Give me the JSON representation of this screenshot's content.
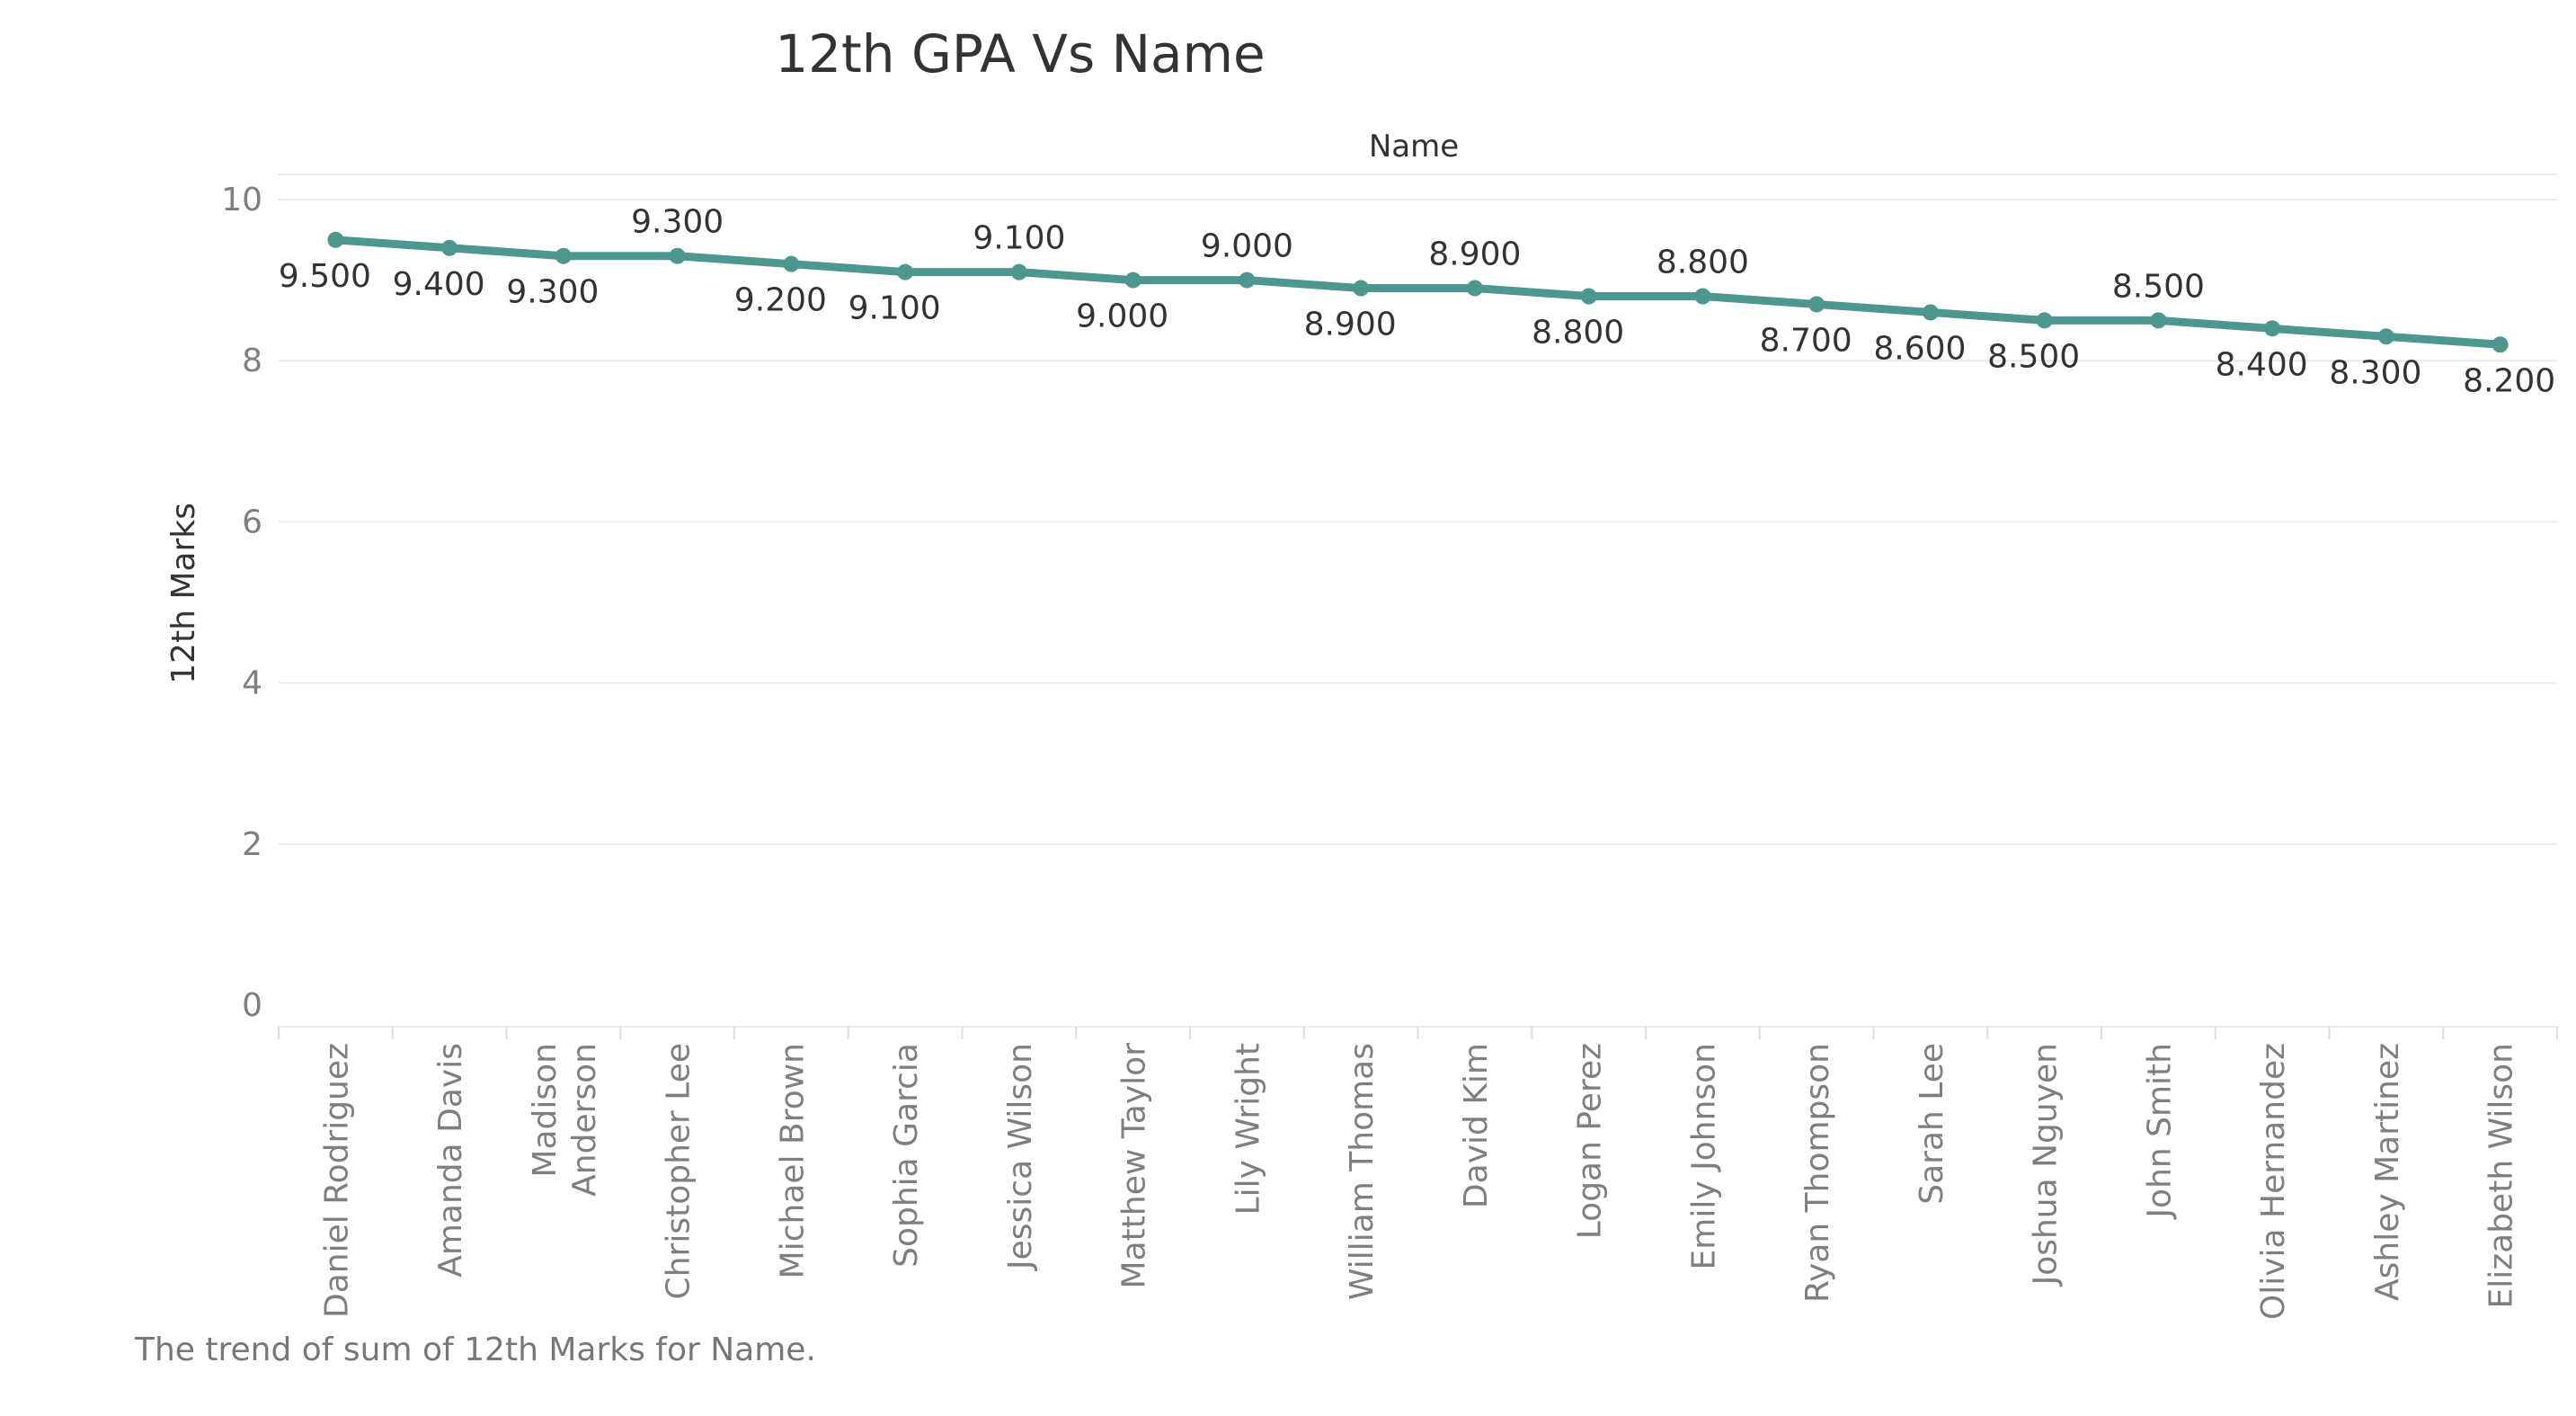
{
  "chart_data": {
    "type": "line",
    "title": "12th GPA Vs Name",
    "column_header": "Name",
    "ylabel": "12th Marks",
    "caption": "The trend of sum of 12th Marks for Name.",
    "ylim": [
      0,
      10
    ],
    "yticks": [
      0,
      2,
      4,
      6,
      8,
      10
    ],
    "grid": true,
    "line_color": "#4e9690",
    "categories": [
      "Daniel Rodriguez",
      "Amanda Davis",
      "Madison Anderson",
      "Christopher Lee",
      "Michael Brown",
      "Sophia Garcia",
      "Jessica Wilson",
      "Matthew Taylor",
      "Lily Wright",
      "William Thomas",
      "David Kim",
      "Logan Perez",
      "Emily Johnson",
      "Ryan Thompson",
      "Sarah Lee",
      "Joshua Nguyen",
      "John Smith",
      "Olivia Hernandez",
      "Ashley Martinez",
      "Elizabeth Wilson"
    ],
    "values": [
      9.5,
      9.4,
      9.3,
      9.3,
      9.2,
      9.1,
      9.1,
      9.0,
      9.0,
      8.9,
      8.9,
      8.8,
      8.8,
      8.7,
      8.6,
      8.5,
      8.5,
      8.4,
      8.3,
      8.2
    ],
    "value_labels": [
      "9.500",
      "9.400",
      "9.300",
      "9.300",
      "9.200",
      "9.100",
      "9.100",
      "9.000",
      "9.000",
      "8.900",
      "8.900",
      "8.800",
      "8.800",
      "8.700",
      "8.600",
      "8.500",
      "8.500",
      "8.400",
      "8.300",
      "8.200"
    ]
  }
}
